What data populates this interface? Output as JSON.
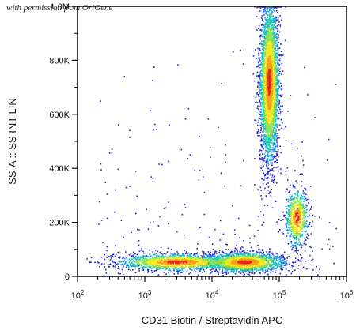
{
  "watermark": "with permission from OriGene",
  "chart_data": {
    "type": "scatter",
    "style": "density-colored flow cytometry dot plot",
    "xlabel": "CD31 Biotin / Streptavidin APC",
    "ylabel": "SS-A :: SS INT LIN",
    "x_scale": "log",
    "xlim": [
      100,
      1000000
    ],
    "ylim": [
      0,
      1000000
    ],
    "x_ticks": [
      {
        "value": 100,
        "base": "10",
        "exp": "2"
      },
      {
        "value": 1000,
        "base": "10",
        "exp": "3"
      },
      {
        "value": 10000,
        "base": "10",
        "exp": "4"
      },
      {
        "value": 100000,
        "base": "10",
        "exp": "5"
      },
      {
        "value": 1000000,
        "base": "10",
        "exp": "6"
      }
    ],
    "y_ticks": [
      {
        "value": 0,
        "label": "0"
      },
      {
        "value": 200000,
        "label": "200K"
      },
      {
        "value": 400000,
        "label": "400K"
      },
      {
        "value": 600000,
        "label": "600K"
      },
      {
        "value": 800000,
        "label": "800K"
      },
      {
        "value": 1000000,
        "label": "1,0M"
      }
    ],
    "populations": [
      {
        "center_x": 3000,
        "center_y": 55000,
        "spread_x_decades": 0.45,
        "spread_y": 15000,
        "events": 1600
      },
      {
        "center_x": 30000,
        "center_y": 55000,
        "spread_x_decades": 0.3,
        "spread_y": 18000,
        "events": 1800
      },
      {
        "center_x": 70000,
        "center_y": 720000,
        "spread_x_decades": 0.07,
        "spread_y": 150000,
        "events": 3600
      },
      {
        "center_x": 180000,
        "center_y": 220000,
        "spread_x_decades": 0.08,
        "spread_y": 55000,
        "events": 700
      }
    ],
    "colormap": [
      "#1e22d8",
      "#1a9fe6",
      "#20c8b0",
      "#8be04e",
      "#f2e81c",
      "#f4a21a",
      "#e02a15"
    ]
  }
}
